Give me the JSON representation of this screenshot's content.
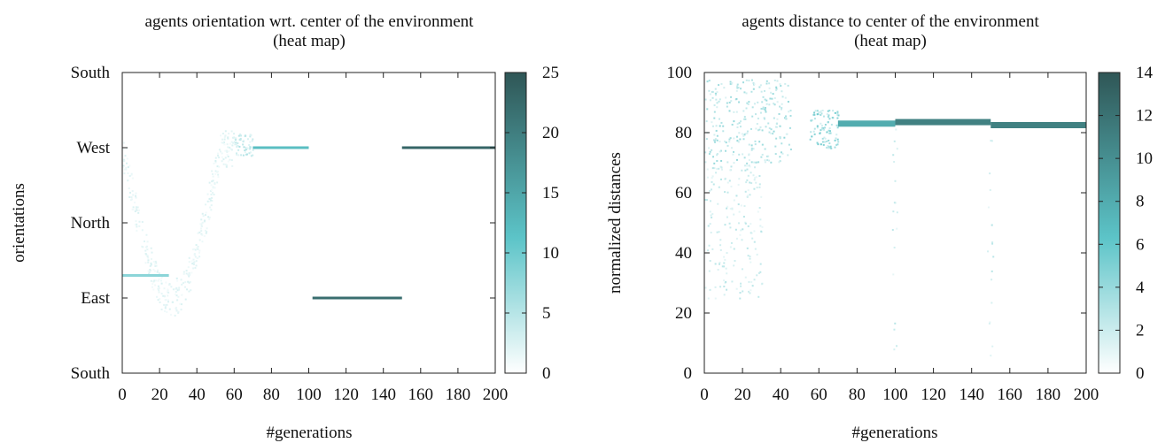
{
  "colors": {
    "low": "#ffffff",
    "mid": "#5cc4c8",
    "high": "#2f5656"
  },
  "chart_data": [
    {
      "type": "heatmap",
      "title": "agents orientation wrt. center of the environment",
      "subtitle": "(heat map)",
      "xlabel": "#generations",
      "ylabel": "orientations",
      "xlim": [
        0,
        200
      ],
      "ylim": [
        0,
        4
      ],
      "xticks": [
        0,
        20,
        40,
        60,
        80,
        100,
        120,
        140,
        160,
        180,
        200
      ],
      "yticks": [
        {
          "value": 0,
          "label": "South"
        },
        {
          "value": 1,
          "label": "East"
        },
        {
          "value": 2,
          "label": "North"
        },
        {
          "value": 3,
          "label": "West"
        },
        {
          "value": 4,
          "label": "South"
        }
      ],
      "colorbar": {
        "min": 0,
        "max": 25,
        "ticks": [
          0,
          5,
          10,
          15,
          20,
          25
        ]
      },
      "bands": [
        {
          "x0": 0,
          "x1": 25,
          "y": 1.3,
          "value": 8
        },
        {
          "x0": 70,
          "x1": 100,
          "y": 3.0,
          "value": 12
        },
        {
          "x0": 102,
          "x1": 150,
          "y": 1.0,
          "value": 22
        },
        {
          "x0": 150,
          "x1": 200,
          "y": 3.0,
          "value": 23
        }
      ],
      "scatter_regions": [
        {
          "x0": 0,
          "x1": 60,
          "y0": 0.8,
          "y1": 3.2,
          "value": 2,
          "trend": "u-curve"
        },
        {
          "x0": 60,
          "x1": 70,
          "y0": 2.9,
          "y1": 3.2,
          "value": 4,
          "trend": "flat"
        }
      ]
    },
    {
      "type": "heatmap",
      "title": "agents distance to center of the environment",
      "subtitle": "(heat map)",
      "xlabel": "#generations",
      "ylabel": "normalized distances",
      "xlim": [
        0,
        200
      ],
      "ylim": [
        0,
        100
      ],
      "xticks": [
        0,
        20,
        40,
        60,
        80,
        100,
        120,
        140,
        160,
        180,
        200
      ],
      "yticks": [
        {
          "value": 0,
          "label": "0"
        },
        {
          "value": 20,
          "label": "20"
        },
        {
          "value": 40,
          "label": "40"
        },
        {
          "value": 60,
          "label": "60"
        },
        {
          "value": 80,
          "label": "80"
        },
        {
          "value": 100,
          "label": "100"
        }
      ],
      "colorbar": {
        "min": 0,
        "max": 14,
        "ticks": [
          0,
          2,
          4,
          6,
          8,
          10,
          12,
          14
        ]
      },
      "bands": [
        {
          "x0": 70,
          "x1": 100,
          "y": 83,
          "value": 8
        },
        {
          "x0": 100,
          "x1": 150,
          "y": 83.5,
          "value": 11
        },
        {
          "x0": 150,
          "x1": 200,
          "y": 82.5,
          "value": 11
        }
      ],
      "scatter_regions": [
        {
          "x0": 0,
          "x1": 45,
          "y0": 70,
          "y1": 98,
          "value": 3,
          "trend": "flat"
        },
        {
          "x0": 0,
          "x1": 30,
          "y0": 25,
          "y1": 70,
          "value": 2,
          "trend": "flat"
        },
        {
          "x0": 55,
          "x1": 70,
          "y0": 75,
          "y1": 88,
          "value": 4,
          "trend": "flat"
        },
        {
          "x0": 98,
          "x1": 101,
          "y0": 2,
          "y1": 82,
          "value": 2,
          "trend": "flat"
        },
        {
          "x0": 148,
          "x1": 151,
          "y0": 2,
          "y1": 82,
          "value": 2,
          "trend": "flat"
        }
      ]
    }
  ]
}
